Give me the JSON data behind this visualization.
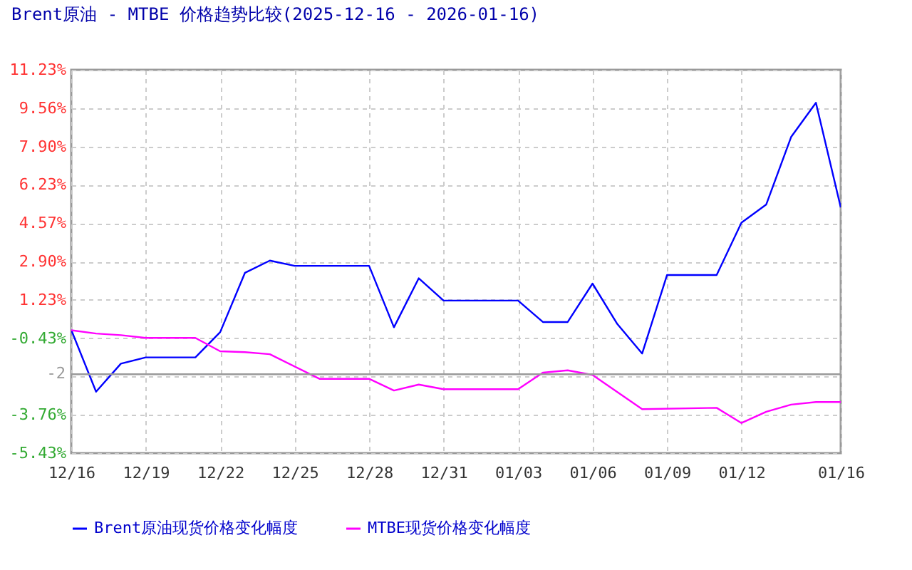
{
  "chart_data": {
    "type": "line",
    "title": "Brent原油 - MTBE 价格趋势比较(2025-12-16 - 2026-01-16)",
    "series": [
      {
        "name": "Brent原油现货价格变化幅度",
        "color": "#0000ff",
        "x": [
          "2025-12-16",
          "2025-12-17",
          "2025-12-18",
          "2025-12-19",
          "2025-12-21",
          "2025-12-22",
          "2025-12-23",
          "2025-12-24",
          "2025-12-25",
          "2025-12-28",
          "2025-12-29",
          "2025-12-30",
          "2025-12-31",
          "2026-01-03",
          "2026-01-04",
          "2026-01-05",
          "2026-01-06",
          "2026-01-07",
          "2026-01-08",
          "2026-01-09",
          "2026-01-11",
          "2026-01-12",
          "2026-01-13",
          "2026-01-14",
          "2026-01-15",
          "2026-01-16"
        ],
        "values": [
          -0.07,
          -2.76,
          -1.54,
          -1.27,
          -1.27,
          -0.17,
          2.41,
          2.94,
          2.71,
          2.71,
          0.04,
          2.17,
          1.2,
          1.2,
          0.27,
          0.27,
          1.94,
          0.18,
          -1.1,
          2.31,
          2.31,
          4.59,
          5.38,
          8.31,
          9.8,
          5.25
        ]
      },
      {
        "name": "MTBE现货价格变化幅度",
        "color": "#ff00ff",
        "x": [
          "2025-12-16",
          "2025-12-17",
          "2025-12-18",
          "2025-12-19",
          "2025-12-21",
          "2025-12-22",
          "2025-12-23",
          "2025-12-24",
          "2025-12-26",
          "2025-12-28",
          "2025-12-29",
          "2025-12-30",
          "2025-12-31",
          "2026-01-03",
          "2026-01-04",
          "2026-01-05",
          "2026-01-06",
          "2026-01-08",
          "2026-01-11",
          "2026-01-12",
          "2026-01-13",
          "2026-01-14",
          "2026-01-15",
          "2026-01-16"
        ],
        "values": [
          -0.09,
          -0.23,
          -0.3,
          -0.42,
          -0.42,
          -1.0,
          -1.04,
          -1.13,
          -2.2,
          -2.2,
          -2.71,
          -2.45,
          -2.65,
          -2.65,
          -1.93,
          -1.83,
          -2.03,
          -3.52,
          -3.46,
          -4.12,
          -3.63,
          -3.32,
          -3.21,
          -3.21
        ]
      }
    ],
    "xlim": [
      "2025-12-16",
      "2026-01-16"
    ],
    "xticks": [
      {
        "value": "2025-12-16",
        "label": "12/16"
      },
      {
        "value": "2025-12-19",
        "label": "12/19"
      },
      {
        "value": "2025-12-22",
        "label": "12/22"
      },
      {
        "value": "2025-12-25",
        "label": "12/25"
      },
      {
        "value": "2025-12-28",
        "label": "12/28"
      },
      {
        "value": "2025-12-31",
        "label": "12/31"
      },
      {
        "value": "2026-01-03",
        "label": "01/03"
      },
      {
        "value": "2026-01-06",
        "label": "01/06"
      },
      {
        "value": "2026-01-09",
        "label": "01/09"
      },
      {
        "value": "2026-01-12",
        "label": "01/12"
      },
      {
        "value": "2026-01-16",
        "label": "01/16"
      }
    ],
    "ylim": [
      -5.43,
      11.23
    ],
    "yticks": [
      {
        "value": -5.43,
        "label": "-5.43%"
      },
      {
        "value": -3.76,
        "label": "-3.76%"
      },
      {
        "value": -2.1,
        "label": null
      },
      {
        "value": -0.43,
        "label": "-0.43%"
      },
      {
        "value": 1.23,
        "label": "1.23%"
      },
      {
        "value": 2.9,
        "label": "2.90%"
      },
      {
        "value": 4.57,
        "label": "4.57%"
      },
      {
        "value": 6.23,
        "label": "6.23%"
      },
      {
        "value": 7.9,
        "label": "7.90%"
      },
      {
        "value": 9.56,
        "label": "9.56%"
      },
      {
        "value": 11.23,
        "label": "11.23%"
      }
    ],
    "ref_lines": [
      {
        "axis": "y",
        "value": -2,
        "label": "-2",
        "color": "#999999"
      }
    ],
    "grid": true,
    "legend": "bottom",
    "marker": "none",
    "line_style": "solid"
  }
}
